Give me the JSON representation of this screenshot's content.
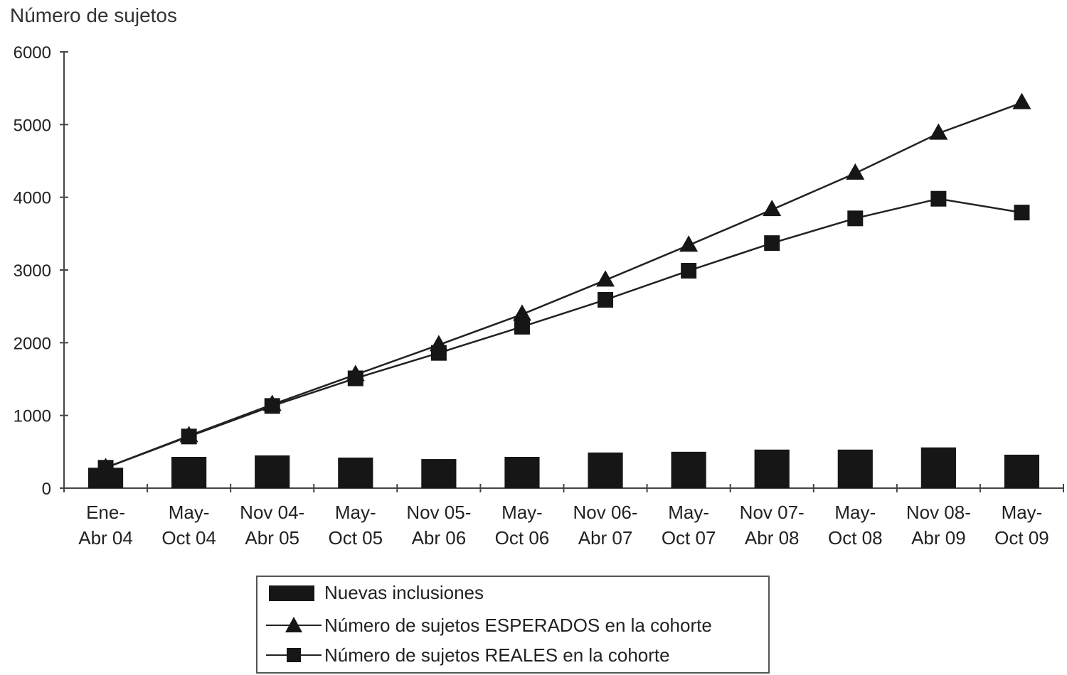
{
  "chart_data": {
    "type": "bar",
    "ylabel": "Número de sujetos",
    "ylim": [
      0,
      6000
    ],
    "yticks": [
      "0",
      "1000",
      "2000",
      "3000",
      "4000",
      "5000",
      "6000"
    ],
    "categories": [
      [
        "Ene-",
        "Abr 04"
      ],
      [
        "May-",
        "Oct 04"
      ],
      [
        "Nov 04-",
        "Abr 05"
      ],
      [
        "May-",
        "Oct 05"
      ],
      [
        "Nov 05-",
        "Abr 06"
      ],
      [
        "May-",
        "Oct 06"
      ],
      [
        "Nov 06-",
        "Abr 07"
      ],
      [
        "May-",
        "Oct 07"
      ],
      [
        "Nov 07-",
        "Abr 08"
      ],
      [
        "May-",
        "Oct 08"
      ],
      [
        "Nov 08-",
        "Abr 09"
      ],
      [
        "May-",
        "Oct 09"
      ]
    ],
    "series": [
      {
        "name": "Nuevas inclusiones",
        "kind": "bar",
        "values": [
          280,
          430,
          450,
          420,
          400,
          430,
          490,
          500,
          530,
          530,
          560,
          460
        ]
      },
      {
        "name": "Número de sujetos ESPERADOS en la cohorte",
        "kind": "line",
        "marker": "triangle",
        "values": [
          280,
          720,
          1150,
          1560,
          1970,
          2390,
          2860,
          3340,
          3830,
          4330,
          4880,
          5300
        ]
      },
      {
        "name": "Número de sujetos REALES en la cohorte",
        "kind": "line",
        "marker": "square",
        "values": [
          280,
          710,
          1130,
          1510,
          1860,
          2220,
          2590,
          2990,
          3370,
          3710,
          3980,
          3790
        ]
      }
    ],
    "legend_position": "bottom",
    "grid": false,
    "colors": {
      "bar": "#161616",
      "line": "#222222",
      "marker": "#161616"
    }
  }
}
